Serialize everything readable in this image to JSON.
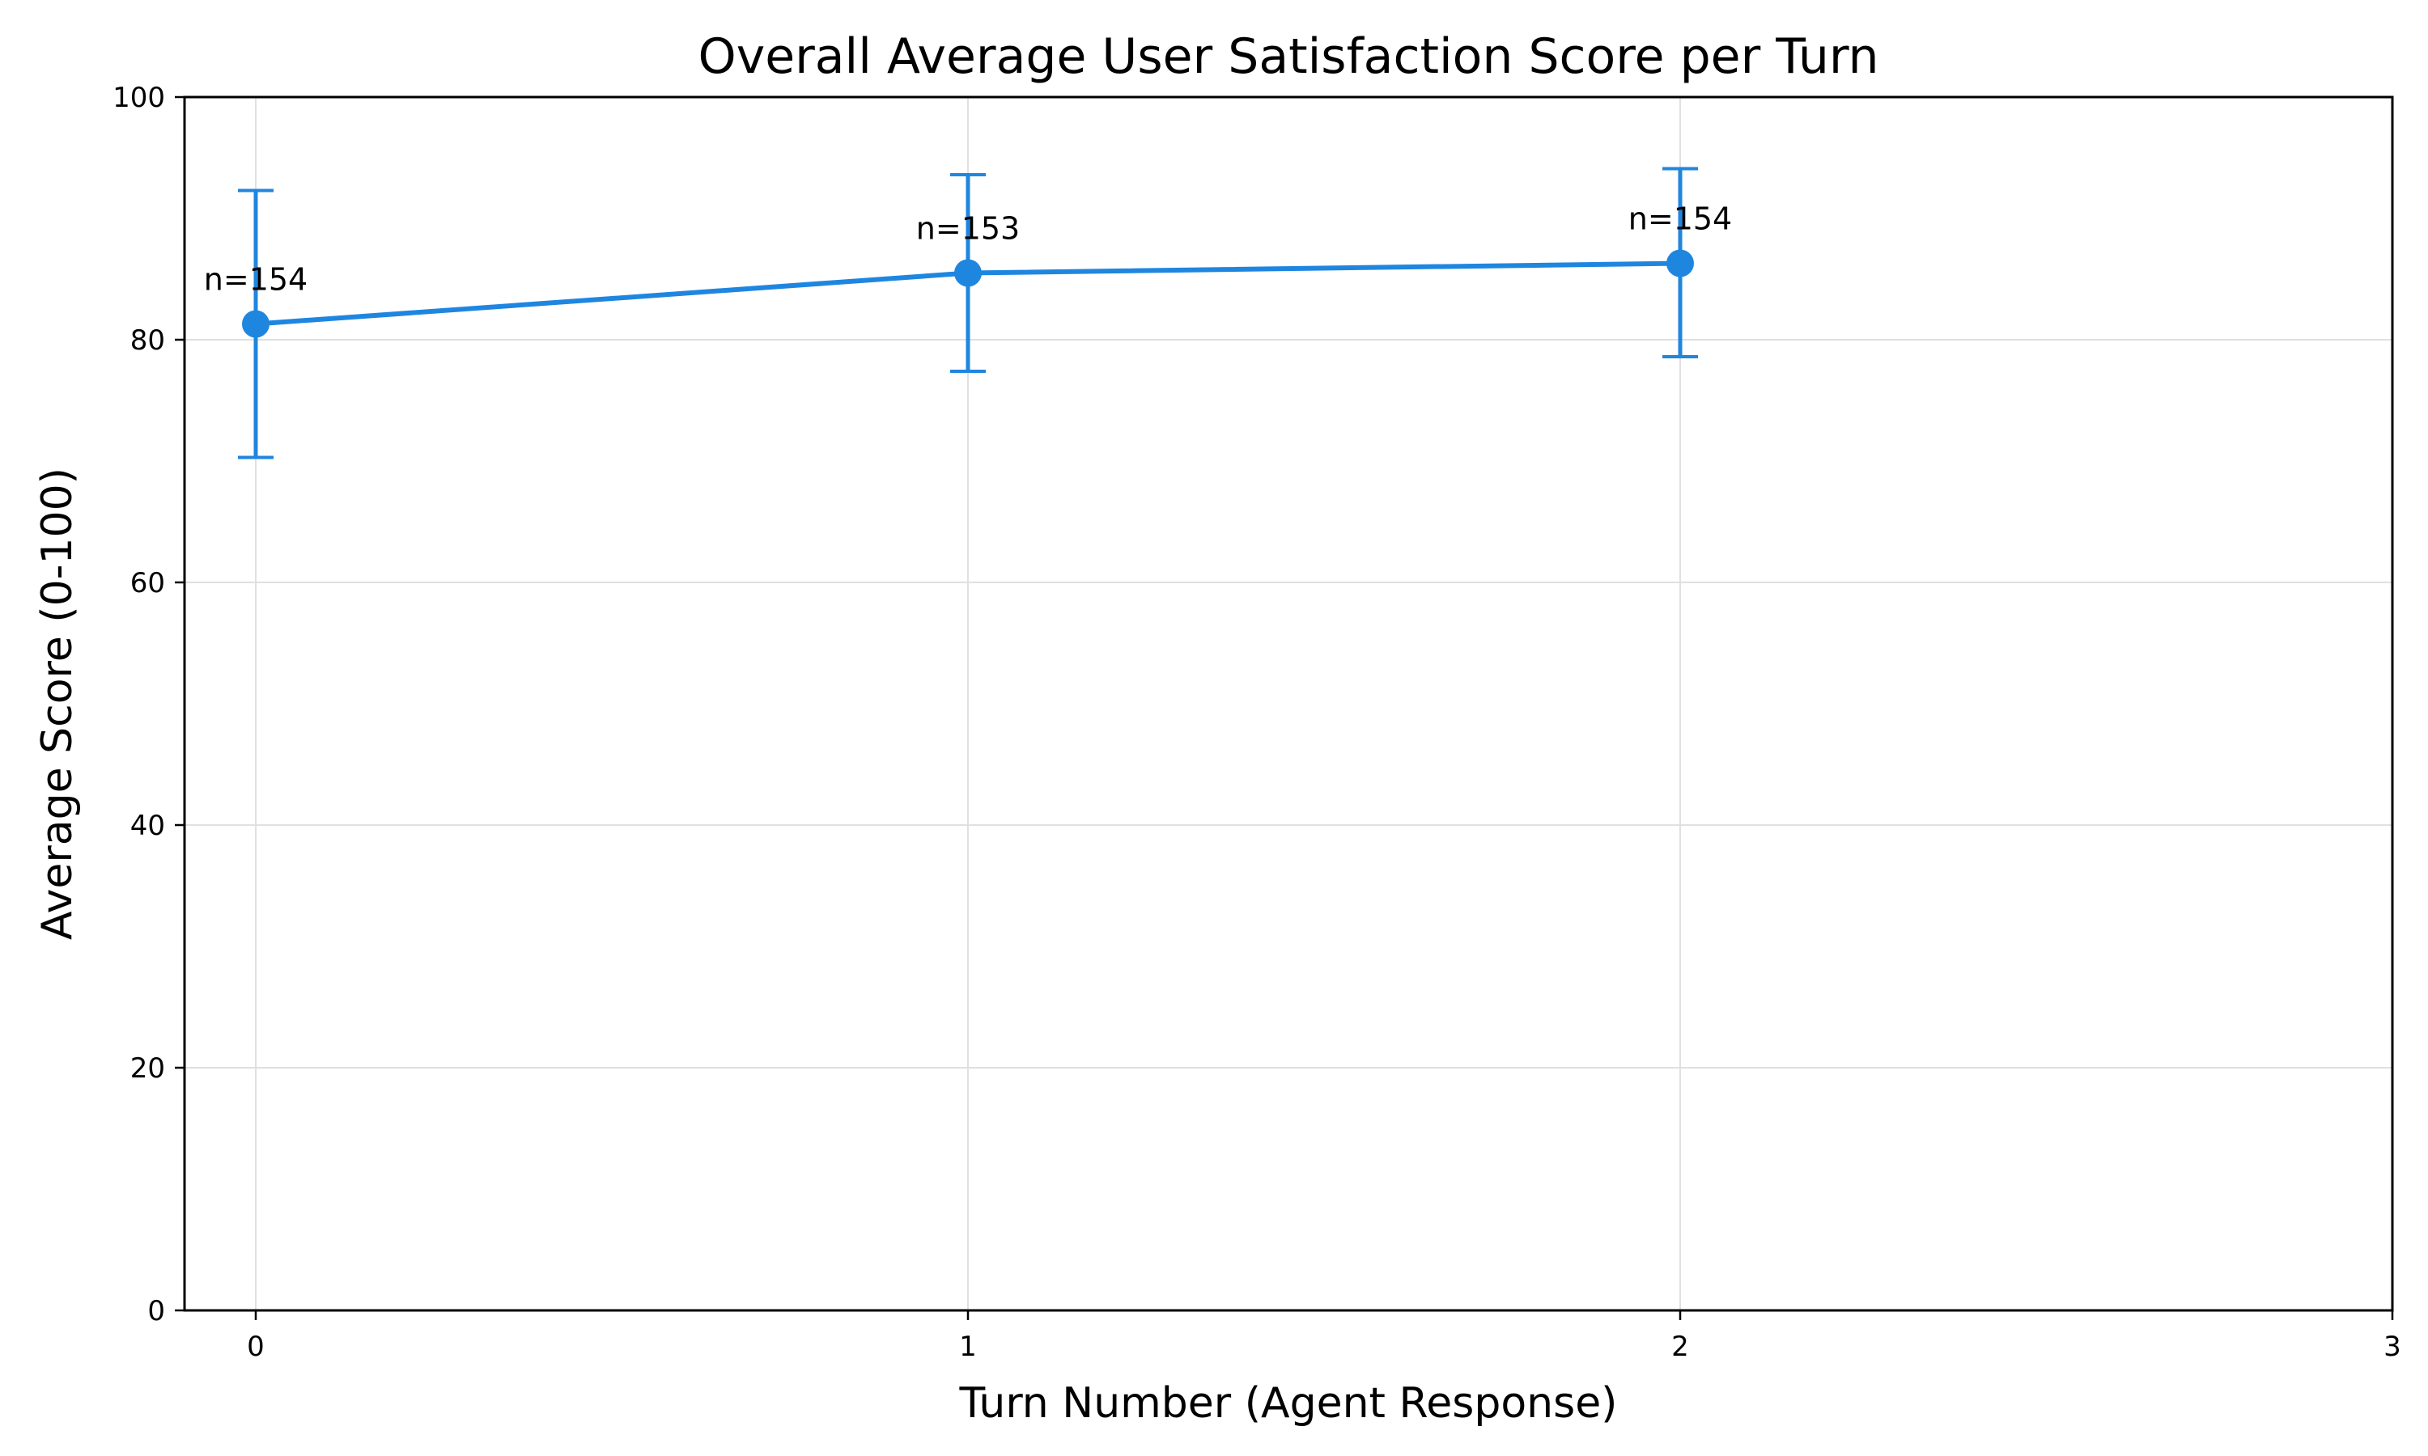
{
  "chart_data": {
    "type": "line",
    "title": "Overall Average User Satisfaction Score per Turn",
    "xlabel": "Turn Number (Agent Response)",
    "ylabel": "Average Score (0-100)",
    "xlim": [
      -0.1,
      3
    ],
    "ylim": [
      0,
      100
    ],
    "x_ticks": [
      "0",
      "1",
      "2",
      "3"
    ],
    "y_ticks": [
      "0",
      "20",
      "40",
      "60",
      "80",
      "100"
    ],
    "grid": true,
    "color": "#1f86e0",
    "series": [
      {
        "x": [
          0,
          1,
          2
        ],
        "y": [
          81.3,
          85.5,
          86.3
        ],
        "err_low": [
          70.3,
          77.4,
          78.6
        ],
        "err_high": [
          92.3,
          93.6,
          94.1
        ],
        "annotations": [
          "n=154",
          "n=153",
          "n=154"
        ]
      }
    ]
  }
}
